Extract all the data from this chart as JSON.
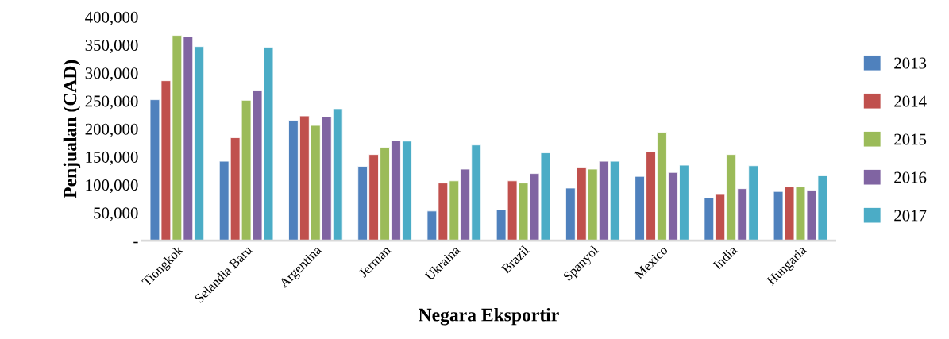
{
  "chart_data": {
    "type": "bar",
    "xlabel": "Negara Eksportir",
    "ylabel": "Penjualan (CAD)",
    "categories": [
      "Tiongkok",
      "Selandia Baru",
      "Argentina",
      "Jerman",
      "Ukraina",
      "Brazil",
      "Spanyol",
      "Mexico",
      "India",
      "Hungaria"
    ],
    "series": [
      {
        "name": "2013",
        "color": "#4f81bd",
        "values": [
          252000,
          142000,
          215000,
          133000,
          53000,
          55000,
          94000,
          115000,
          77000,
          88000
        ]
      },
      {
        "name": "2014",
        "color": "#c0504d",
        "values": [
          286000,
          184000,
          223000,
          154000,
          103000,
          107000,
          131000,
          159000,
          84000,
          96000
        ]
      },
      {
        "name": "2015",
        "color": "#9bbb59",
        "values": [
          367000,
          251000,
          206000,
          167000,
          107000,
          103000,
          128000,
          194000,
          154000,
          96000
        ]
      },
      {
        "name": "2016",
        "color": "#8064a2",
        "values": [
          365000,
          269000,
          221000,
          179000,
          128000,
          120000,
          142000,
          122000,
          93000,
          90000
        ]
      },
      {
        "name": "2017",
        "color": "#4bacc6",
        "values": [
          347000,
          346000,
          236000,
          178000,
          171000,
          157000,
          142000,
          135000,
          134000,
          116000
        ]
      }
    ],
    "ylim": [
      0,
      400000
    ],
    "yticks": [
      {
        "value": 0,
        "label": "-"
      },
      {
        "value": 50000,
        "label": "50,000"
      },
      {
        "value": 100000,
        "label": "100,000"
      },
      {
        "value": 150000,
        "label": "150,000"
      },
      {
        "value": 200000,
        "label": "200,000"
      },
      {
        "value": 250000,
        "label": "250,000"
      },
      {
        "value": 300000,
        "label": "300,000"
      },
      {
        "value": 350000,
        "label": "350,000"
      },
      {
        "value": 400000,
        "label": "400,000"
      }
    ],
    "grid": false,
    "legend": "right"
  }
}
